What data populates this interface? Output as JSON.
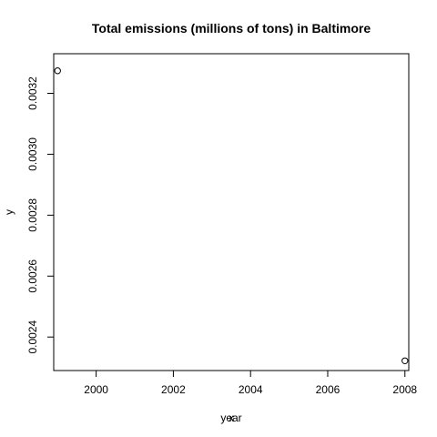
{
  "chart_data": {
    "type": "scatter",
    "title": "Total emissions (millions of tons) in Baltimore",
    "xlabel": "year",
    "xlabel_overprint": "x",
    "ylabel": "y",
    "xlim": [
      1998.9,
      2008.1
    ],
    "ylim": [
      0.00229,
      0.00333
    ],
    "x_ticks": [
      2000,
      2002,
      2004,
      2006,
      2008
    ],
    "x_tick_labels": [
      "2000",
      "2002",
      "2004",
      "2006",
      "2008"
    ],
    "y_ticks": [
      0.0024,
      0.0026,
      0.0028,
      0.003,
      0.0032
    ],
    "y_tick_labels": [
      "0.0024",
      "0.0026",
      "0.0028",
      "0.0030",
      "0.0032"
    ],
    "points": [
      {
        "x": 1999,
        "y": 0.003274
      },
      {
        "x": 2008,
        "y": 0.002322
      }
    ],
    "grid": false,
    "legend": "none",
    "marker": "open-circle",
    "color": "#000000"
  }
}
